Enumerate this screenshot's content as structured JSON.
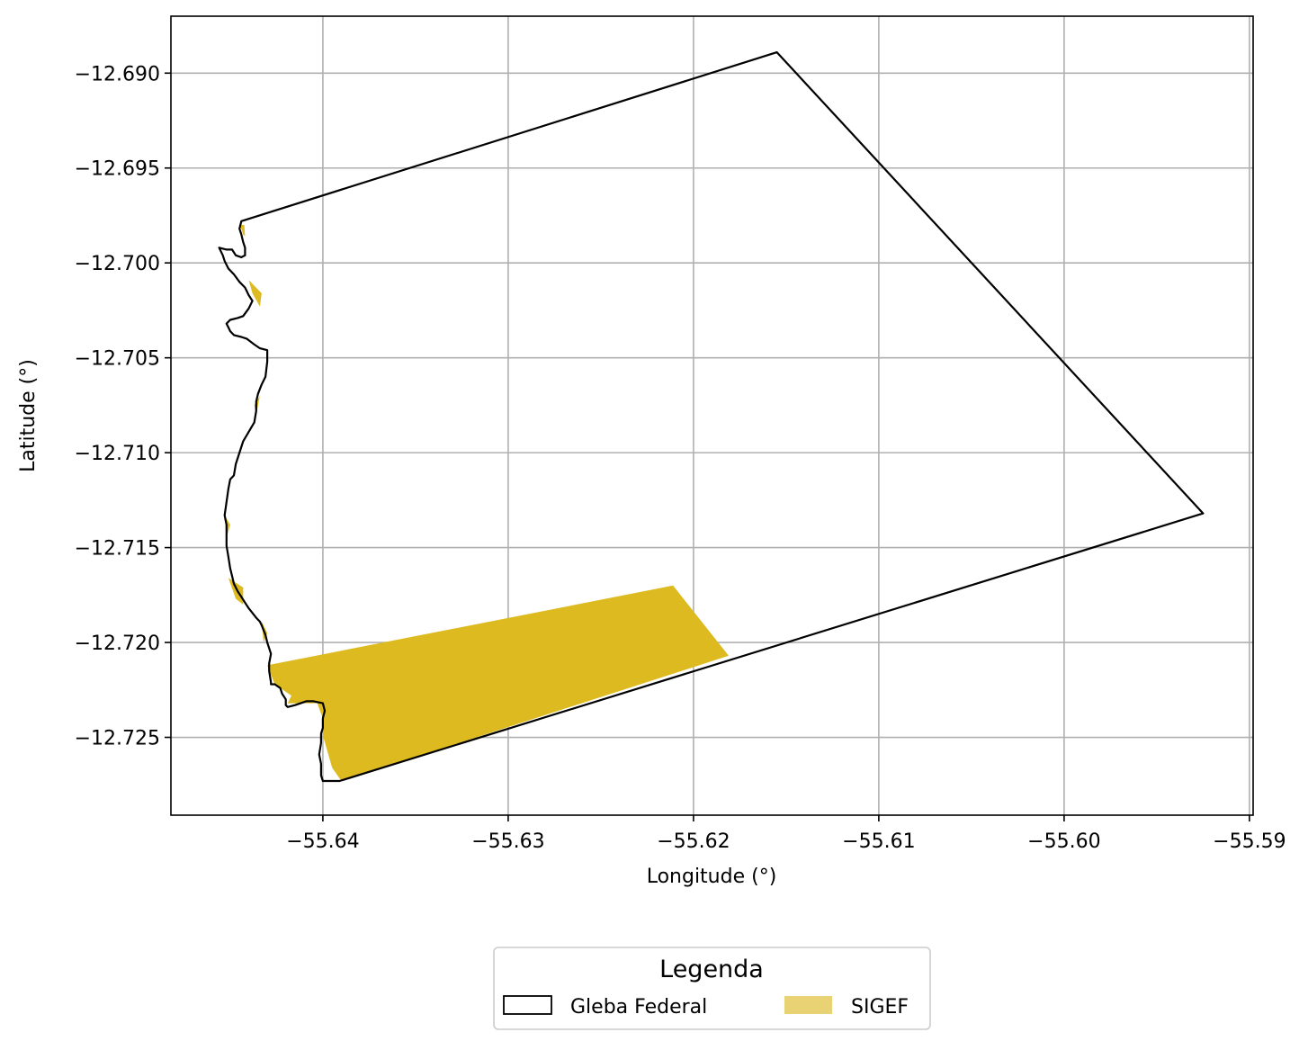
{
  "chart_data": {
    "type": "map",
    "xlabel": "Longitude (°)",
    "ylabel": "Latitude (°)",
    "xlim": [
      -55.6482,
      -55.5898
    ],
    "ylim": [
      -12.7291,
      -12.687
    ],
    "xticks": [
      -55.64,
      -55.63,
      -55.62,
      -55.61,
      -55.6,
      -55.59
    ],
    "xtick_labels": [
      "−55.64",
      "−55.63",
      "−55.62",
      "−55.61",
      "−55.60",
      "−55.59"
    ],
    "yticks": [
      -12.69,
      -12.695,
      -12.7,
      -12.705,
      -12.71,
      -12.715,
      -12.72,
      -12.725
    ],
    "ytick_labels": [
      "−12.690",
      "−12.695",
      "−12.700",
      "−12.705",
      "−12.710",
      "−12.715",
      "−12.720",
      "−12.725"
    ],
    "grid": true,
    "legend": {
      "title": "Legenda",
      "placement": "bottom-center",
      "entries": [
        {
          "label": "Gleba Federal",
          "style": "outline",
          "color": "#000000"
        },
        {
          "label": "SIGEF",
          "style": "fill",
          "color": "#E8D274"
        }
      ]
    },
    "colors": {
      "gleba_edge": "#000000",
      "sigef_fill": "#DDBB20",
      "grid": "#B0B0B0"
    },
    "layers": [
      {
        "name": "SIGEF",
        "kind": "fill",
        "polygons": [
          [
            [
              -55.643,
              -12.7212
            ],
            [
              -55.6211,
              -12.717
            ],
            [
              -55.6181,
              -12.7207
            ],
            [
              -55.639,
              -12.7273
            ],
            [
              -55.6395,
              -12.7266
            ],
            [
              -55.64,
              -12.7249
            ],
            [
              -55.64,
              -12.724
            ],
            [
              -55.6403,
              -12.7232
            ],
            [
              -55.6408,
              -12.7232
            ],
            [
              -55.6419,
              -12.7232
            ],
            [
              -55.6417,
              -12.7228
            ],
            [
              -55.6426,
              -12.7222
            ]
          ],
          [
            [
              -55.64447,
              -12.698
            ],
            [
              -55.64424,
              -12.698
            ],
            [
              -55.6442,
              -12.6986
            ],
            [
              -55.6443,
              -12.6985
            ]
          ],
          [
            [
              -55.644,
              -12.7009
            ],
            [
              -55.6433,
              -12.7016
            ],
            [
              -55.6434,
              -12.7023
            ],
            [
              -55.6438,
              -12.7016
            ]
          ],
          [
            [
              -55.6437,
              -12.7075
            ],
            [
              -55.6434,
              -12.707
            ],
            [
              -55.6436,
              -12.708
            ]
          ],
          [
            [
              -55.6453,
              -12.7133
            ],
            [
              -55.645,
              -12.7138
            ],
            [
              -55.6452,
              -12.7145
            ]
          ],
          [
            [
              -55.6451,
              -12.7166
            ],
            [
              -55.6443,
              -12.7171
            ],
            [
              -55.6443,
              -12.718
            ],
            [
              -55.6447,
              -12.7177
            ]
          ],
          [
            [
              -55.6433,
              -12.7189
            ],
            [
              -55.643,
              -12.7195
            ],
            [
              -55.6432,
              -12.72
            ]
          ]
        ]
      },
      {
        "name": "Gleba Federal",
        "kind": "outline",
        "polygons": [
          [
            [
              -55.6444,
              -12.6978
            ],
            [
              -55.6155,
              -12.6889
            ],
            [
              -55.5925,
              -12.7132
            ],
            [
              -55.6391,
              -12.7273
            ],
            [
              -55.6395,
              -12.7273
            ],
            [
              -55.64,
              -12.7273
            ],
            [
              -55.6401,
              -12.727
            ],
            [
              -55.6401,
              -12.7264
            ],
            [
              -55.6402,
              -12.7259
            ],
            [
              -55.6401,
              -12.7253
            ],
            [
              -55.6401,
              -12.7248
            ],
            [
              -55.64,
              -12.7245
            ],
            [
              -55.64,
              -12.724
            ],
            [
              -55.6399,
              -12.7236
            ],
            [
              -55.64,
              -12.7232
            ],
            [
              -55.6405,
              -12.7231
            ],
            [
              -55.6409,
              -12.7231
            ],
            [
              -55.6415,
              -12.7233
            ],
            [
              -55.6419,
              -12.7234
            ],
            [
              -55.642,
              -12.7233
            ],
            [
              -55.642,
              -12.723
            ],
            [
              -55.6422,
              -12.7227
            ],
            [
              -55.6423,
              -12.7224
            ],
            [
              -55.6426,
              -12.7222
            ],
            [
              -55.6428,
              -12.7222
            ],
            [
              -55.6428,
              -12.7221
            ],
            [
              -55.6429,
              -12.7215
            ],
            [
              -55.6429,
              -12.7211
            ],
            [
              -55.6428,
              -12.7206
            ],
            [
              -55.6429,
              -12.7203
            ],
            [
              -55.643,
              -12.72
            ],
            [
              -55.6431,
              -12.7196
            ],
            [
              -55.6433,
              -12.7191
            ],
            [
              -55.6434,
              -12.7189
            ],
            [
              -55.6436,
              -12.7187
            ],
            [
              -55.644,
              -12.7182
            ],
            [
              -55.6442,
              -12.7179
            ],
            [
              -55.6444,
              -12.7176
            ],
            [
              -55.6446,
              -12.7173
            ],
            [
              -55.6448,
              -12.7169
            ],
            [
              -55.6449,
              -12.7165
            ],
            [
              -55.645,
              -12.7161
            ],
            [
              -55.6451,
              -12.7155
            ],
            [
              -55.6452,
              -12.7149
            ],
            [
              -55.6452,
              -12.7142
            ],
            [
              -55.6452,
              -12.7138
            ],
            [
              -55.6453,
              -12.7133
            ],
            [
              -55.6452,
              -12.7126
            ],
            [
              -55.6451,
              -12.7119
            ],
            [
              -55.645,
              -12.7114
            ],
            [
              -55.6448,
              -12.7112
            ],
            [
              -55.6447,
              -12.7106
            ],
            [
              -55.6445,
              -12.71
            ],
            [
              -55.6443,
              -12.7094
            ],
            [
              -55.644,
              -12.7089
            ],
            [
              -55.6437,
              -12.7084
            ],
            [
              -55.6436,
              -12.7078
            ],
            [
              -55.6436,
              -12.7073
            ],
            [
              -55.6435,
              -12.7069
            ],
            [
              -55.6433,
              -12.7064
            ],
            [
              -55.6431,
              -12.706
            ],
            [
              -55.643,
              -12.7052
            ],
            [
              -55.643,
              -12.7046
            ],
            [
              -55.6434,
              -12.7045
            ],
            [
              -55.6437,
              -12.7043
            ],
            [
              -55.6441,
              -12.704
            ],
            [
              -55.6444,
              -12.7039
            ],
            [
              -55.6448,
              -12.7038
            ],
            [
              -55.645,
              -12.7036
            ],
            [
              -55.6451,
              -12.7034
            ],
            [
              -55.6452,
              -12.7032
            ],
            [
              -55.645,
              -12.703
            ],
            [
              -55.6446,
              -12.7029
            ],
            [
              -55.6443,
              -12.7028
            ],
            [
              -55.644,
              -12.7024
            ],
            [
              -55.6438,
              -12.702
            ],
            [
              -55.644,
              -12.7017
            ],
            [
              -55.6442,
              -12.7013
            ],
            [
              -55.6445,
              -12.701
            ],
            [
              -55.6448,
              -12.7006
            ],
            [
              -55.6451,
              -12.7003
            ],
            [
              -55.6453,
              -12.6999
            ],
            [
              -55.6454,
              -12.6996
            ],
            [
              -55.6456,
              -12.6992
            ],
            [
              -55.6452,
              -12.6993
            ],
            [
              -55.6449,
              -12.6993
            ],
            [
              -55.6447,
              -12.6996
            ],
            [
              -55.6444,
              -12.6997
            ],
            [
              -55.6442,
              -12.6996
            ],
            [
              -55.6442,
              -12.6992
            ],
            [
              -55.6443,
              -12.6989
            ],
            [
              -55.6444,
              -12.6985
            ],
            [
              -55.6445,
              -12.6982
            ],
            [
              -55.6444,
              -12.6978
            ]
          ]
        ]
      }
    ]
  }
}
